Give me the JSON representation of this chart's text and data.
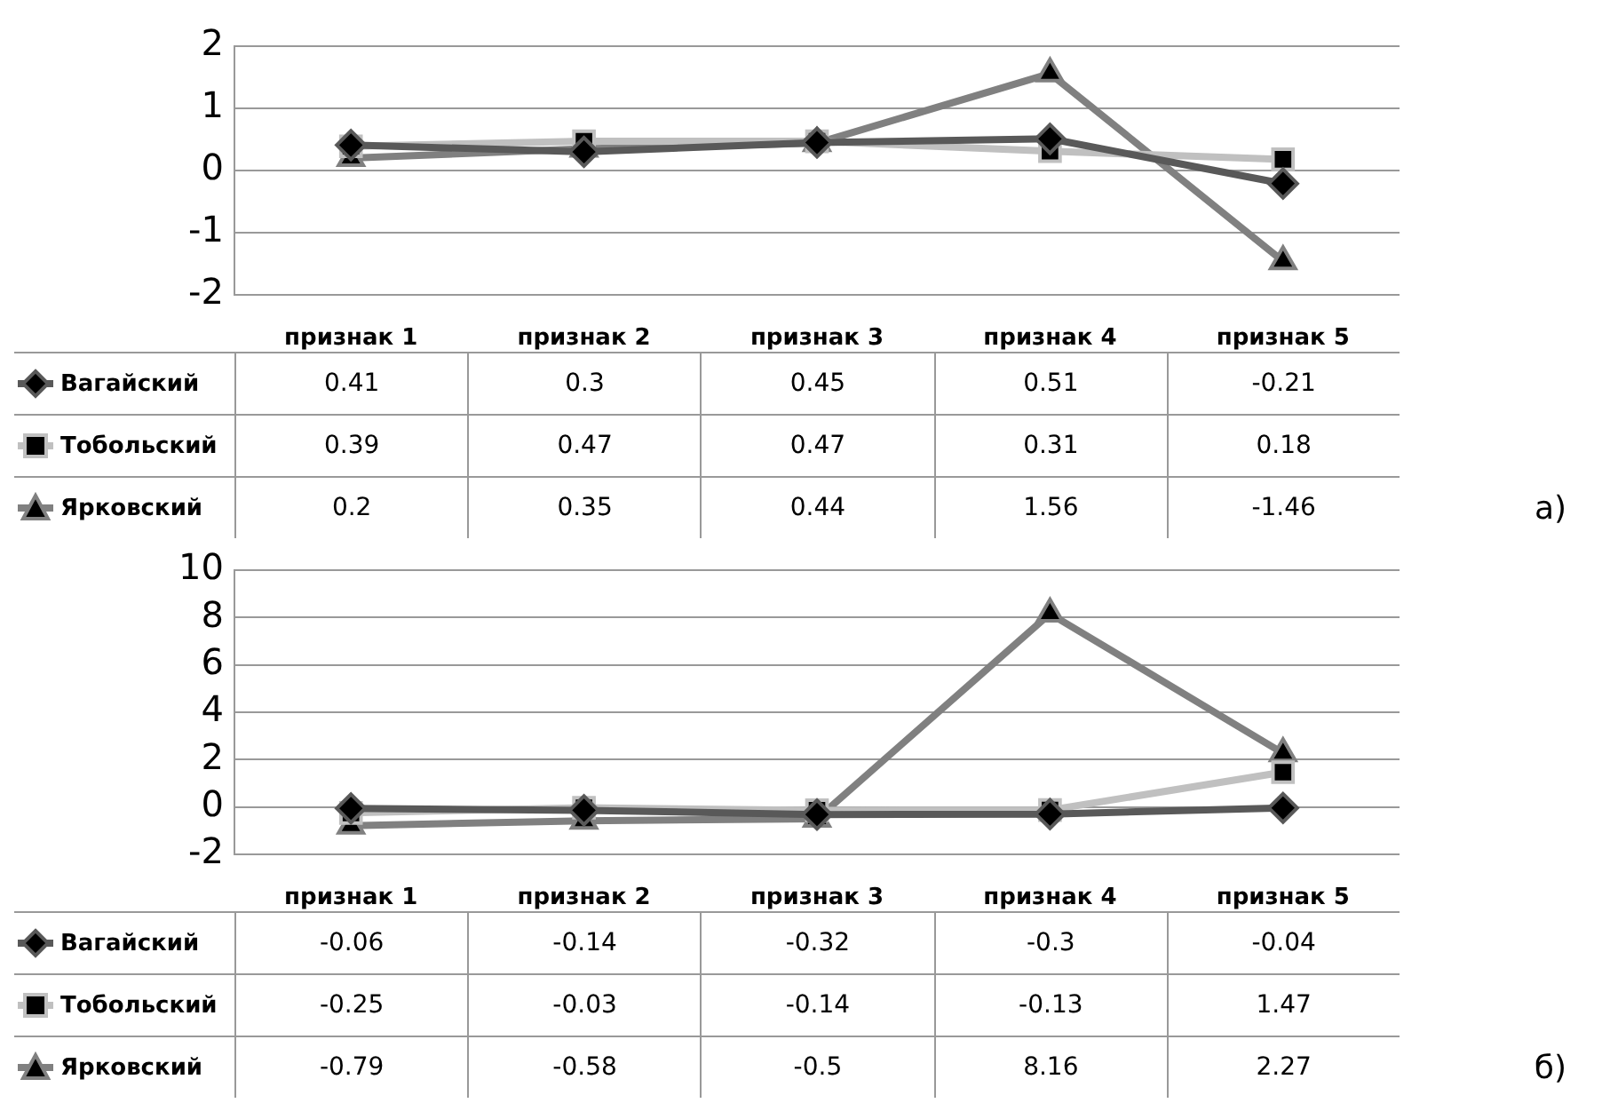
{
  "chart_data": [
    {
      "type": "line",
      "categories": [
        "признак 1",
        "признак 2",
        "признак 3",
        "признак 4",
        "признак 5"
      ],
      "ylim": [
        -2,
        2
      ],
      "yticks": [
        -2,
        -1,
        0,
        1,
        2
      ],
      "grid": "y",
      "legend": "left",
      "data_labels": true,
      "annotations": [
        "а)"
      ],
      "series": [
        {
          "name": "Вагайский",
          "color": "#595959",
          "marker": "diamond",
          "values": [
            0.41,
            0.3,
            0.45,
            0.51,
            -0.21
          ]
        },
        {
          "name": "Тобольский",
          "color": "#c0c0c0",
          "marker": "square",
          "values": [
            0.39,
            0.47,
            0.47,
            0.31,
            0.18
          ]
        },
        {
          "name": "Ярковский",
          "color": "#808080",
          "marker": "triangle",
          "values": [
            0.2,
            0.35,
            0.44,
            1.56,
            -1.46
          ]
        }
      ]
    },
    {
      "type": "line",
      "categories": [
        "признак 1",
        "признак 2",
        "признак 3",
        "признак 4",
        "признак 5"
      ],
      "ylim": [
        -2,
        10
      ],
      "yticks": [
        -2,
        0,
        2,
        4,
        6,
        8,
        10
      ],
      "grid": "y",
      "legend": "left",
      "data_labels": true,
      "annotations": [
        "б)"
      ],
      "series": [
        {
          "name": "Вагайский",
          "color": "#595959",
          "marker": "diamond",
          "values": [
            -0.06,
            -0.14,
            -0.32,
            -0.3,
            -0.04
          ]
        },
        {
          "name": "Тобольский",
          "color": "#c0c0c0",
          "marker": "square",
          "values": [
            -0.25,
            -0.03,
            -0.14,
            -0.13,
            1.47
          ]
        },
        {
          "name": "Ярковский",
          "color": "#808080",
          "marker": "triangle",
          "values": [
            -0.79,
            -0.58,
            -0.5,
            8.16,
            2.27
          ]
        }
      ]
    }
  ]
}
